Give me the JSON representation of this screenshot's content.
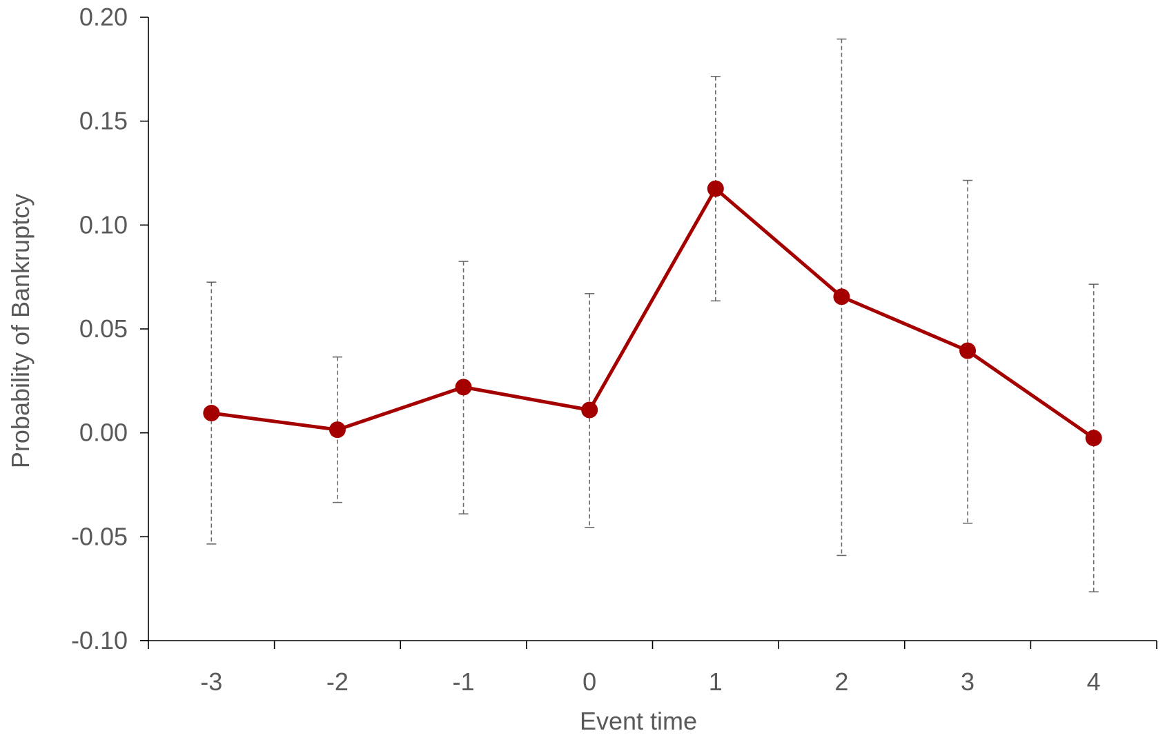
{
  "chart_data": {
    "type": "line",
    "title": "",
    "xlabel": "Event time",
    "ylabel": "Probability of Bankruptcy",
    "categories": [
      "-3",
      "-2",
      "-1",
      "0",
      "1",
      "2",
      "3",
      "4"
    ],
    "ylim": [
      -0.1,
      0.2
    ],
    "yticks": [
      0.2,
      0.15,
      0.1,
      0.05,
      0.0,
      -0.05,
      -0.1
    ],
    "ytick_labels": [
      "0.20",
      "0.15",
      "0.10",
      "0.05",
      "0.00",
      "-0.05",
      "-0.10"
    ],
    "grid": false,
    "legend": "none",
    "series": [
      {
        "values": [
          0.0095,
          0.0015,
          0.022,
          0.011,
          0.1175,
          0.0655,
          0.0395,
          -0.0025
        ],
        "error_upper": [
          0.0725,
          0.0365,
          0.0825,
          0.067,
          0.1715,
          0.1895,
          0.1215,
          0.0715
        ],
        "error_lower": [
          -0.0535,
          -0.0335,
          -0.039,
          -0.0455,
          0.0635,
          -0.059,
          -0.0435,
          -0.0765
        ],
        "color": "#A50000"
      }
    ]
  }
}
